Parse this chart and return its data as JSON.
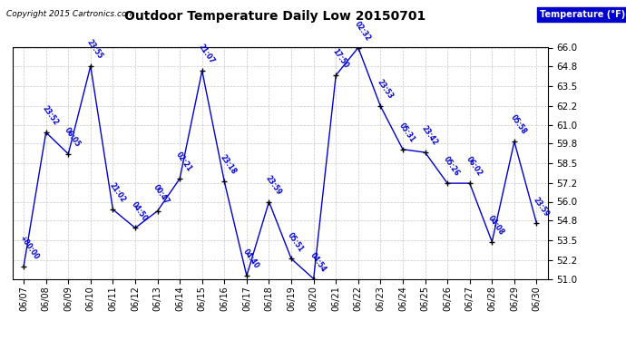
{
  "title": "Outdoor Temperature Daily Low 20150701",
  "copyright": "Copyright 2015 Cartronics.com",
  "line_color": "#0000cc",
  "background_color": "#ffffff",
  "grid_color": "#b0b0b0",
  "legend_label": "Temperature (°F)",
  "ylim": [
    51.0,
    66.0
  ],
  "yticks": [
    51.0,
    52.2,
    53.5,
    54.8,
    56.0,
    57.2,
    58.5,
    59.8,
    61.0,
    62.2,
    63.5,
    64.8,
    66.0
  ],
  "data": [
    {
      "date": "06/07",
      "time": "+00:00",
      "temp": 51.8
    },
    {
      "date": "06/08",
      "time": "23:52",
      "temp": 60.5
    },
    {
      "date": "06/09",
      "time": "06:05",
      "temp": 59.1
    },
    {
      "date": "06/10",
      "time": "23:55",
      "temp": 64.8
    },
    {
      "date": "06/11",
      "time": "21:02",
      "temp": 55.5
    },
    {
      "date": "06/12",
      "time": "04:50",
      "temp": 54.3
    },
    {
      "date": "06/13",
      "time": "00:47",
      "temp": 55.4
    },
    {
      "date": "06/14",
      "time": "02:21",
      "temp": 57.5
    },
    {
      "date": "06/15",
      "time": "21:07",
      "temp": 64.5
    },
    {
      "date": "06/16",
      "time": "23:18",
      "temp": 57.3
    },
    {
      "date": "06/17",
      "time": "04:40",
      "temp": 51.2
    },
    {
      "date": "06/18",
      "time": "23:59",
      "temp": 56.0
    },
    {
      "date": "06/19",
      "time": "05:51",
      "temp": 52.3
    },
    {
      "date": "06/20",
      "time": "04:54",
      "temp": 51.0
    },
    {
      "date": "06/21",
      "time": "17:50",
      "temp": 64.2
    },
    {
      "date": "06/22",
      "time": "02:32",
      "temp": 66.0
    },
    {
      "date": "06/23",
      "time": "23:53",
      "temp": 62.2
    },
    {
      "date": "06/24",
      "time": "05:31",
      "temp": 59.4
    },
    {
      "date": "06/25",
      "time": "23:42",
      "temp": 59.2
    },
    {
      "date": "06/26",
      "time": "05:26",
      "temp": 57.2
    },
    {
      "date": "06/27",
      "time": "06:02",
      "temp": 57.2
    },
    {
      "date": "06/28",
      "time": "04:08",
      "temp": 53.4
    },
    {
      "date": "06/29",
      "time": "05:58",
      "temp": 59.9
    },
    {
      "date": "06/30",
      "time": "23:59",
      "temp": 54.6
    }
  ]
}
